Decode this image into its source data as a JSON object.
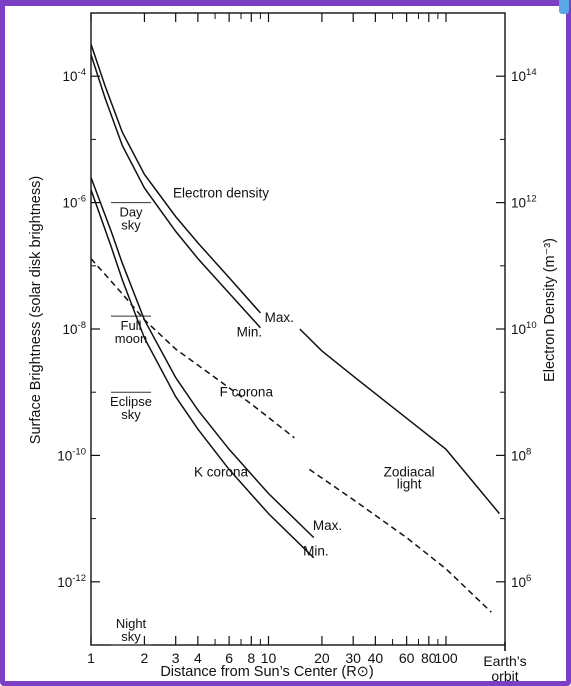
{
  "chart_data": {
    "type": "line",
    "xlabel": "Distance from Sun’s Center (R⊙)",
    "ylabel_left": "Surface Brightness (solar disk brightness)",
    "ylabel_right": "Electron Density (m⁻³)",
    "x_scale": "log",
    "x_range": [
      1,
      215
    ],
    "x_ticks": [
      {
        "value": 1,
        "label": "1"
      },
      {
        "value": 2,
        "label": "2"
      },
      {
        "value": 3,
        "label": "3"
      },
      {
        "value": 4,
        "label": "4"
      },
      {
        "value": 6,
        "label": "6"
      },
      {
        "value": 8,
        "label": "8"
      },
      {
        "value": 10,
        "label": "10"
      },
      {
        "value": 20,
        "label": "20"
      },
      {
        "value": 30,
        "label": "30"
      },
      {
        "value": 40,
        "label": "40"
      },
      {
        "value": 60,
        "label": "60"
      },
      {
        "value": 80,
        "label": "80"
      },
      {
        "value": 100,
        "label": "100"
      }
    ],
    "x_minor_ticks": [
      5,
      7,
      9,
      50,
      70,
      90
    ],
    "earth_orbit": {
      "value": 215,
      "label_line1": "Earth’s",
      "label_line2": "orbit"
    },
    "y_left_scale": "log",
    "y_left_range": [
      1e-13,
      0.001
    ],
    "y_left_ticks": [
      {
        "value": 0.0001,
        "base": "10",
        "exp": "-4"
      },
      {
        "value": 1e-06,
        "base": "10",
        "exp": "-6"
      },
      {
        "value": 1e-08,
        "base": "10",
        "exp": "-8"
      },
      {
        "value": 1e-10,
        "base": "10",
        "exp": "-10"
      },
      {
        "value": 1e-12,
        "base": "10",
        "exp": "-12"
      }
    ],
    "y_right_ticks": [
      {
        "value": 0.0001,
        "base": "10",
        "exp": "14"
      },
      {
        "value": 1e-06,
        "base": "10",
        "exp": "12"
      },
      {
        "value": 1e-08,
        "base": "10",
        "exp": "10"
      },
      {
        "value": 1e-10,
        "base": "10",
        "exp": "8"
      },
      {
        "value": 1e-12,
        "base": "10",
        "exp": "6"
      }
    ],
    "series": [
      {
        "name": "Electron density Max.",
        "style": "solid",
        "points": [
          [
            1,
            0.00032
          ],
          [
            1.2,
            7e-05
          ],
          [
            1.5,
            1.3e-05
          ],
          [
            2,
            2.8e-06
          ],
          [
            3,
            6e-07
          ],
          [
            4,
            2.3e-07
          ],
          [
            6,
            6.5e-08
          ],
          [
            9,
            1.8e-08
          ]
        ]
      },
      {
        "name": "Electron density Min.",
        "style": "solid",
        "points": [
          [
            1,
            0.00022
          ],
          [
            1.2,
            4.5e-05
          ],
          [
            1.5,
            8e-06
          ],
          [
            2,
            1.7e-06
          ],
          [
            3,
            3.5e-07
          ],
          [
            4,
            1.3e-07
          ],
          [
            6,
            3.7e-08
          ],
          [
            9,
            1.05e-08
          ]
        ]
      },
      {
        "name": "K corona Max.",
        "style": "solid",
        "points": [
          [
            1,
            2.5e-06
          ],
          [
            1.3,
            3.5e-07
          ],
          [
            1.5,
            1.1e-07
          ],
          [
            2,
            1.4e-08
          ],
          [
            3,
            1.7e-09
          ],
          [
            4,
            5.2e-10
          ],
          [
            6,
            1.25e-10
          ],
          [
            10,
            2.5e-11
          ],
          [
            18,
            5e-12
          ]
        ]
      },
      {
        "name": "K corona Min.",
        "style": "solid",
        "points": [
          [
            1,
            1.6e-06
          ],
          [
            1.3,
            2e-07
          ],
          [
            1.5,
            6e-08
          ],
          [
            2,
            7.2e-09
          ],
          [
            3,
            8.5e-10
          ],
          [
            4,
            2.6e-10
          ],
          [
            6,
            6e-11
          ],
          [
            10,
            1.2e-11
          ],
          [
            18,
            2.4e-12
          ]
        ]
      },
      {
        "name": "F corona",
        "style": "dashed",
        "points": [
          [
            1,
            1.3e-07
          ],
          [
            1.5,
            3.6e-08
          ],
          [
            2,
            1.4e-08
          ],
          [
            3,
            4.8e-09
          ],
          [
            5,
            1.7e-09
          ],
          [
            8,
            6.5e-10
          ],
          [
            14,
            1.9e-10
          ]
        ]
      },
      {
        "name": "Zodiacal light",
        "style": "dashed",
        "points": [
          [
            17,
            6e-11
          ],
          [
            30,
            2e-11
          ],
          [
            60,
            5e-12
          ],
          [
            100,
            1.6e-12
          ],
          [
            180,
            3.3e-13
          ]
        ]
      },
      {
        "name": "Zodiacal light (upper)",
        "style": "solid",
        "points": [
          [
            15,
            1e-08
          ],
          [
            20,
            4.5e-09
          ],
          [
            30,
            1.8e-09
          ],
          [
            50,
            5.8e-10
          ],
          [
            100,
            1.25e-10
          ],
          [
            200,
            1.2e-11
          ]
        ]
      }
    ],
    "annotations": [
      {
        "id": "electron-density",
        "text": "Electron density",
        "x": 5.4,
        "y": 1.2e-06
      },
      {
        "id": "ed-max",
        "text": "Max.",
        "x": 11.5,
        "y": 1.3e-08
      },
      {
        "id": "ed-min",
        "text": "Min.",
        "x": 7.8,
        "y": 7.6e-09
      },
      {
        "id": "f-corona",
        "text": "F corona",
        "x": 7.5,
        "y": 8.6e-10
      },
      {
        "id": "k-corona",
        "text": "K corona",
        "x": 5.4,
        "y": 4.6e-11
      },
      {
        "id": "k-max",
        "text": "Max.",
        "x": 21.5,
        "y": 6.6e-12
      },
      {
        "id": "k-min",
        "text": "Min.",
        "x": 18.5,
        "y": 2.6e-12
      },
      {
        "id": "zodiacal-1",
        "text": "Zodiacal",
        "x": 62,
        "y": 4.6e-11
      },
      {
        "id": "zodiacal-2",
        "text": "light",
        "x": 62,
        "y": 3e-11
      }
    ],
    "reference_levels": [
      {
        "id": "day-sky",
        "line1": "Day",
        "line2": "sky",
        "y": 1e-06
      },
      {
        "id": "full-moon",
        "line1": "Full",
        "line2": "moon",
        "y": 1.6e-08
      },
      {
        "id": "eclipse-sky",
        "line1": "Eclipse",
        "line2": "sky",
        "y": 1e-09
      },
      {
        "id": "night-sky",
        "line1": "Night",
        "line2": "sky",
        "y": 1e-13
      }
    ]
  }
}
